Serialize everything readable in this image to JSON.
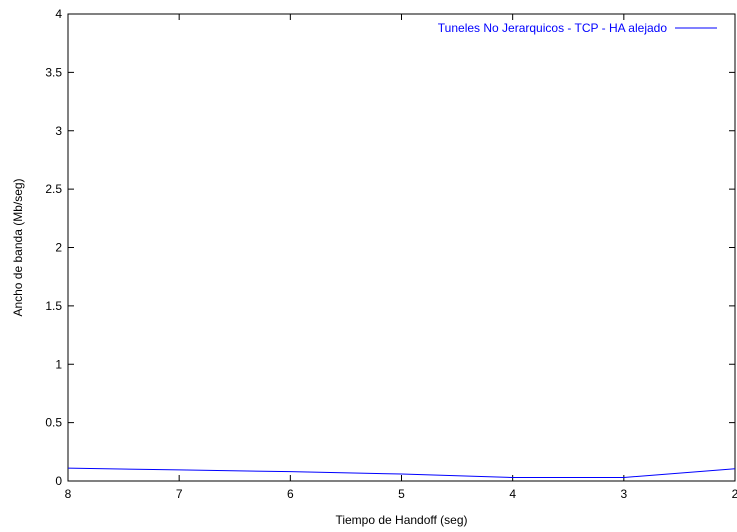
{
  "chart_data": {
    "type": "line",
    "title": "",
    "xlabel": "Tiempo de Handoff (seg)",
    "ylabel": "Ancho de banda (Mb/seg)",
    "xlim": [
      8,
      2
    ],
    "ylim": [
      0,
      4
    ],
    "x_reversed": true,
    "xticks": [
      8,
      7,
      6,
      5,
      4,
      3,
      2
    ],
    "yticks": [
      0,
      0.5,
      1,
      1.5,
      2,
      2.5,
      3,
      3.5,
      4
    ],
    "grid": false,
    "legend_position": "top-right",
    "series": [
      {
        "name": "Tuneles No Jerarquicos - TCP - HA alejado",
        "color": "#0000ff",
        "x": [
          8,
          7,
          6,
          5,
          4,
          3,
          2
        ],
        "y": [
          0.11,
          0.095,
          0.08,
          0.06,
          0.03,
          0.03,
          0.105
        ]
      }
    ]
  }
}
